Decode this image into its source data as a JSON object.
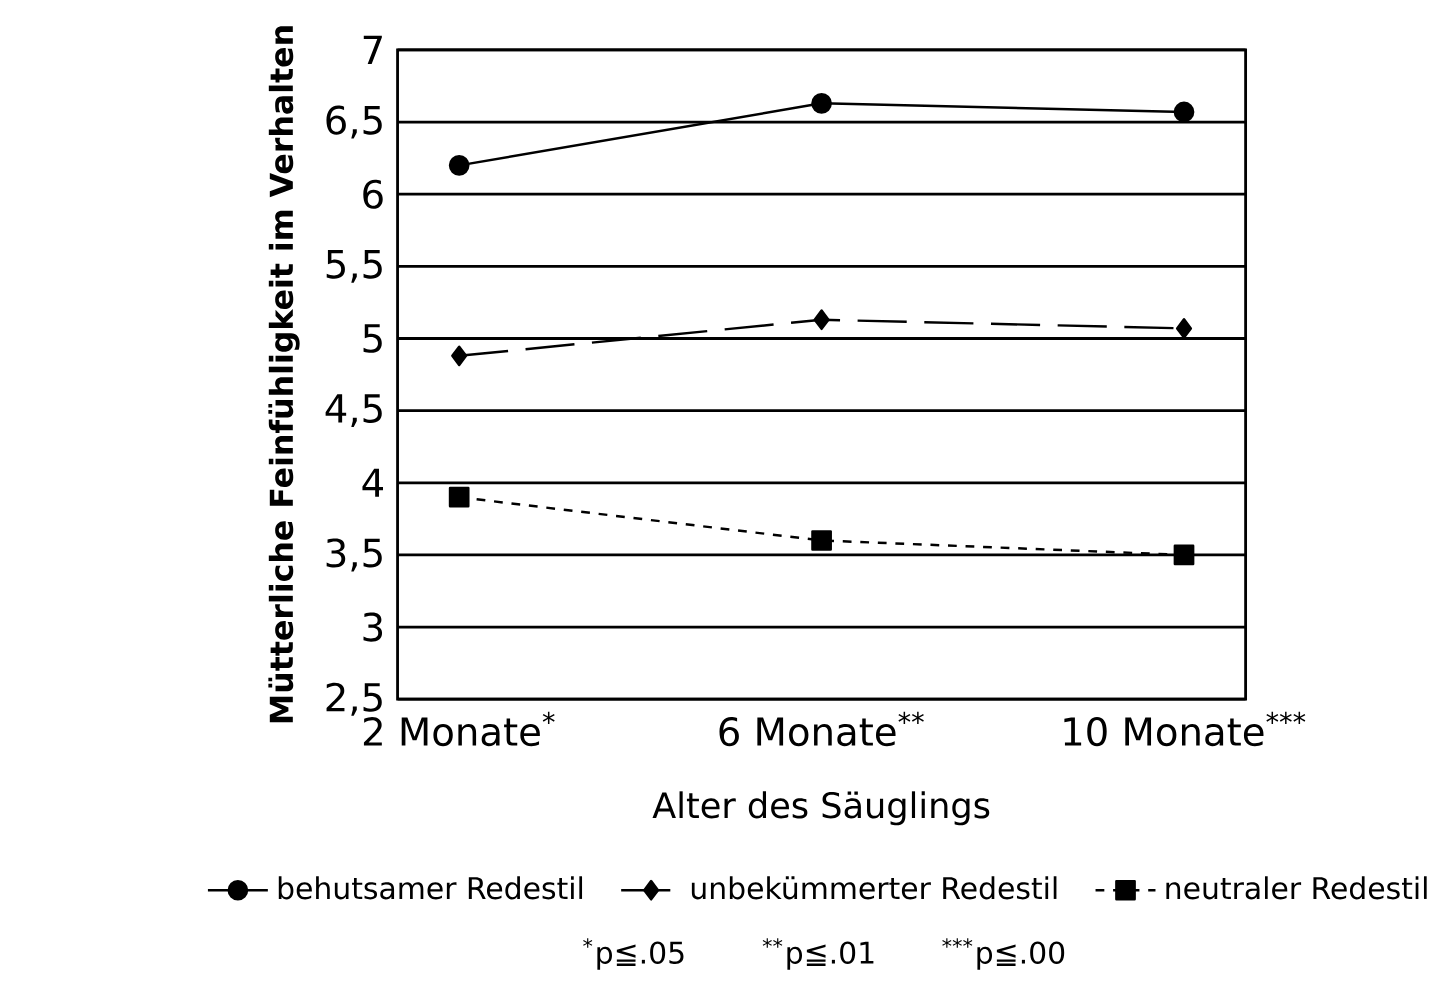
{
  "chart_data": {
    "type": "line",
    "xlabel": "Alter des Säuglings",
    "ylabel": "Mütterliche Feinfühligkeit im Verhalten",
    "categories": [
      "2 Monate$^{*}$",
      "6 Monate$^{**}$",
      "10 Monate$^{***}$"
    ],
    "series": [
      {
        "name": "behutsamer Redestil",
        "color": "#000000",
        "marker": "circle",
        "line_style": "solid",
        "values": [
          6.2,
          6.63,
          6.57
        ]
      },
      {
        "name": "unbekümmerter Redestil",
        "color": "#000000",
        "marker": "diamond",
        "line_style": "dashed",
        "values": [
          4.88,
          5.13,
          5.07
        ]
      },
      {
        "name": "neutraler Redestil",
        "color": "#000000",
        "marker": "square",
        "line_style": "dotted",
        "values": [
          3.9,
          3.6,
          3.5
        ]
      }
    ],
    "ylim": [
      2.5,
      7
    ],
    "yticks": [
      {
        "value": 2.5,
        "label": "2,5"
      },
      3,
      {
        "value": 3.5,
        "label": "3,5"
      },
      4,
      {
        "value": 4.5,
        "label": "4,5"
      },
      5,
      {
        "value": 5.5,
        "label": "5,5"
      },
      6,
      {
        "value": 6.5,
        "label": "6,5"
      },
      7
    ],
    "grid": "y",
    "legend": "bottom",
    "annotations": [
      "$^{*}$p≦.05",
      "$^{**}$p≦.01",
      "$^{***}$p≦.00"
    ]
  }
}
